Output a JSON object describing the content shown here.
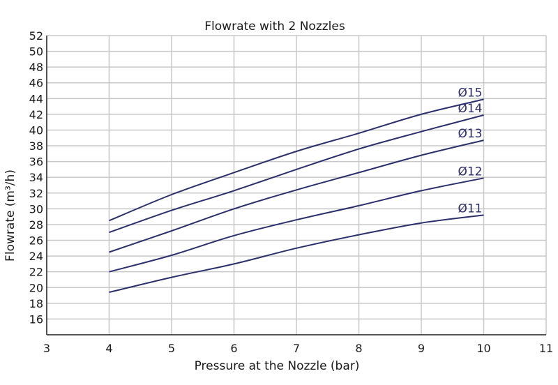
{
  "chart_data": {
    "type": "line",
    "title": "Flowrate with 2 Nozzles",
    "xlabel": "Pressure at the Nozzle (bar)",
    "ylabel": "Flowrate (m³/h)",
    "xlim": [
      3,
      11
    ],
    "ylim": [
      14,
      52
    ],
    "x_ticks": [
      3,
      4,
      5,
      6,
      7,
      8,
      9,
      10,
      11
    ],
    "y_ticks": [
      16,
      18,
      20,
      22,
      24,
      26,
      28,
      30,
      32,
      34,
      36,
      38,
      40,
      42,
      44,
      46,
      48,
      50,
      52
    ],
    "grid": true,
    "line_color": "#2b2f6b",
    "grid_color": "#c8c8c8",
    "x": [
      4,
      5,
      6,
      7,
      8,
      9,
      10
    ],
    "series": [
      {
        "name": "Ø11",
        "values": [
          19.4,
          21.3,
          23.0,
          25.0,
          26.7,
          28.2,
          29.2
        ]
      },
      {
        "name": "Ø12",
        "values": [
          22.0,
          24.1,
          26.6,
          28.6,
          30.4,
          32.3,
          33.9
        ]
      },
      {
        "name": "Ø13",
        "values": [
          24.5,
          27.2,
          30.0,
          32.4,
          34.6,
          36.8,
          38.7
        ]
      },
      {
        "name": "Ø14",
        "values": [
          27.0,
          29.8,
          32.3,
          35.0,
          37.6,
          39.8,
          41.9
        ]
      },
      {
        "name": "Ø15",
        "values": [
          28.5,
          31.8,
          34.6,
          37.3,
          39.6,
          42.0,
          43.9
        ]
      }
    ]
  }
}
